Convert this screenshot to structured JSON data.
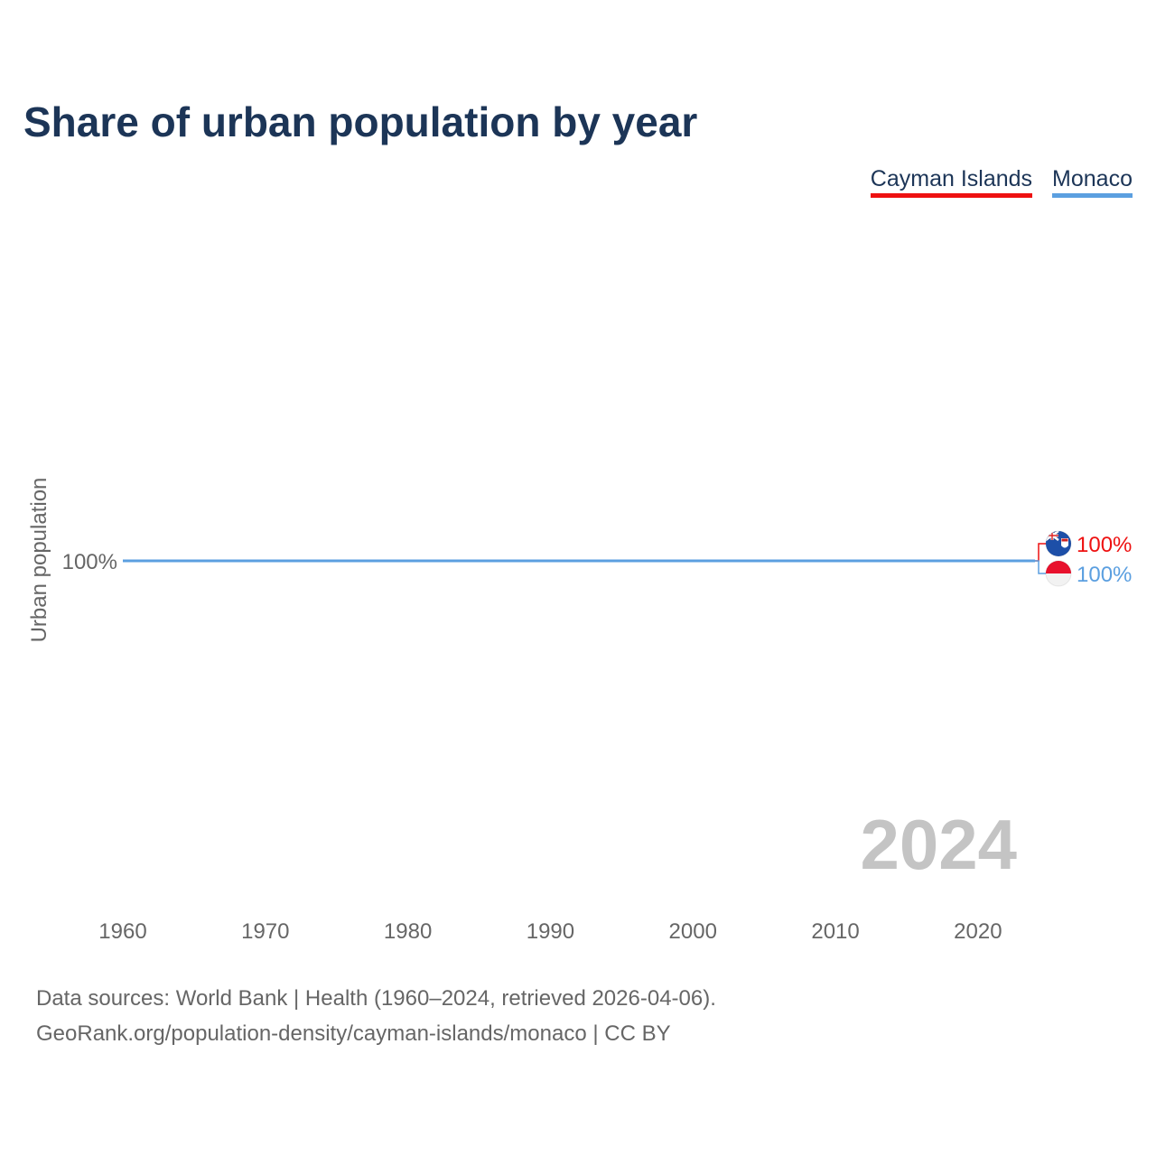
{
  "title": "Share of urban population by year",
  "legend": [
    {
      "label": "Cayman Islands",
      "color": "#ee1111"
    },
    {
      "label": "Monaco",
      "color": "#5b9fe0"
    }
  ],
  "chart_data": {
    "type": "line",
    "title": "Share of urban population by year",
    "xlabel": "",
    "ylabel": "Urban population",
    "x_ticks": [
      "1960",
      "1970",
      "1980",
      "1990",
      "2000",
      "2010",
      "2020"
    ],
    "y_ticks": [
      "100%"
    ],
    "xlim": [
      1960,
      2024
    ],
    "current_year": "2024",
    "series": [
      {
        "name": "Cayman Islands",
        "color": "#ee1111",
        "flag": "cayman-islands-flag-icon",
        "x": [
          1960,
          2024
        ],
        "values": [
          100,
          100
        ],
        "end_label": "100%"
      },
      {
        "name": "Monaco",
        "color": "#5b9fe0",
        "flag": "monaco-flag-icon",
        "x": [
          1960,
          2024
        ],
        "values": [
          100,
          100
        ],
        "end_label": "100%"
      }
    ]
  },
  "source": {
    "line1": "Data sources: World Bank | Health (1960–2024, retrieved 2026-04-06).",
    "line2": "GeoRank.org/population-density/cayman-islands/monaco | CC BY"
  }
}
